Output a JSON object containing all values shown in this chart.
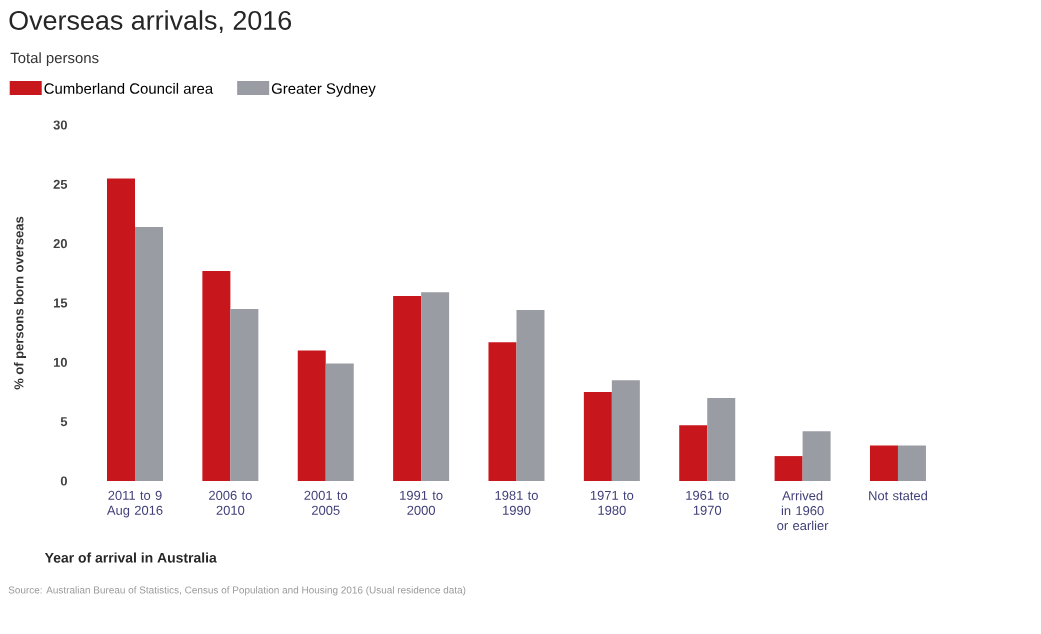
{
  "chart_data": {
    "type": "bar",
    "title": "Overseas arrivals, 2016",
    "subtitle": "Total persons",
    "xlabel": "Year of arrival in Australia",
    "ylabel": "% of persons born overseas",
    "categories": [
      "2011 to 9 Aug 2016",
      "2006 to 2010",
      "2001 to 2005",
      "1991 to 2000",
      "1981 to 1990",
      "1971 to 1980",
      "1961 to 1970",
      "Arrived in 1960 or earlier",
      "Not stated"
    ],
    "series": [
      {
        "name": "Cumberland Council area",
        "color": "#c8161d",
        "values": [
          25.5,
          17.7,
          11.0,
          15.6,
          11.7,
          7.5,
          4.7,
          2.1,
          3.0
        ]
      },
      {
        "name": "Greater Sydney",
        "color": "#9a9ca3",
        "values": [
          21.4,
          14.5,
          9.9,
          15.9,
          14.4,
          8.5,
          7.0,
          4.2,
          3.0
        ]
      }
    ],
    "ylim": [
      0,
      30
    ],
    "yticks": [
      0,
      5,
      10,
      15,
      20,
      25,
      30
    ],
    "grid": false,
    "legend": "top left",
    "annotations": [
      "Source: Australian Bureau of Statistics, Census of Population and Housing 2016 (Usual residence data)"
    ]
  }
}
